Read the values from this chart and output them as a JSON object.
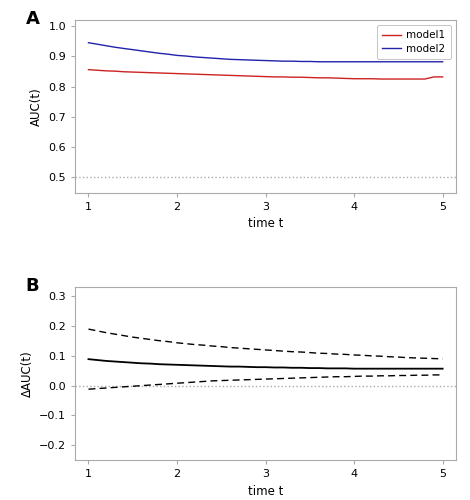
{
  "panel_A": {
    "model1_x": [
      1.0,
      1.1,
      1.2,
      1.3,
      1.4,
      1.5,
      1.6,
      1.7,
      1.8,
      1.9,
      2.0,
      2.1,
      2.2,
      2.3,
      2.4,
      2.5,
      2.6,
      2.7,
      2.8,
      2.9,
      3.0,
      3.1,
      3.2,
      3.3,
      3.4,
      3.5,
      3.6,
      3.7,
      3.8,
      3.9,
      4.0,
      4.1,
      4.2,
      4.3,
      4.4,
      4.5,
      4.6,
      4.7,
      4.8,
      4.9,
      5.0
    ],
    "model1_y": [
      0.856,
      0.854,
      0.852,
      0.851,
      0.849,
      0.848,
      0.847,
      0.846,
      0.845,
      0.844,
      0.843,
      0.842,
      0.841,
      0.84,
      0.839,
      0.838,
      0.837,
      0.836,
      0.835,
      0.834,
      0.833,
      0.832,
      0.832,
      0.831,
      0.831,
      0.83,
      0.829,
      0.829,
      0.828,
      0.827,
      0.826,
      0.826,
      0.826,
      0.825,
      0.825,
      0.825,
      0.825,
      0.825,
      0.825,
      0.832,
      0.832
    ],
    "model2_x": [
      1.0,
      1.1,
      1.2,
      1.3,
      1.4,
      1.5,
      1.6,
      1.7,
      1.8,
      1.9,
      2.0,
      2.1,
      2.2,
      2.3,
      2.4,
      2.5,
      2.6,
      2.7,
      2.8,
      2.9,
      3.0,
      3.1,
      3.2,
      3.3,
      3.4,
      3.5,
      3.6,
      3.7,
      3.8,
      3.9,
      4.0,
      4.1,
      4.2,
      4.3,
      4.4,
      4.5,
      4.6,
      4.7,
      4.8,
      4.9,
      5.0
    ],
    "model2_y": [
      0.945,
      0.94,
      0.935,
      0.93,
      0.926,
      0.922,
      0.918,
      0.914,
      0.91,
      0.907,
      0.903,
      0.901,
      0.898,
      0.896,
      0.894,
      0.892,
      0.89,
      0.889,
      0.888,
      0.887,
      0.886,
      0.885,
      0.884,
      0.884,
      0.883,
      0.883,
      0.882,
      0.882,
      0.882,
      0.882,
      0.882,
      0.882,
      0.882,
      0.882,
      0.882,
      0.882,
      0.882,
      0.882,
      0.882,
      0.882,
      0.882
    ],
    "hline_y": 0.5,
    "ylim": [
      0.45,
      1.02
    ],
    "yticks": [
      0.5,
      0.6,
      0.7,
      0.8,
      0.9,
      1.0
    ],
    "xlim": [
      0.85,
      5.15
    ],
    "xticks": [
      1,
      2,
      3,
      4,
      5
    ],
    "xlabel": "time t",
    "ylabel": "AUC(t)",
    "model1_color": "#cc2222",
    "model2_color": "#2222aa",
    "hline_color": "#aaaaaa",
    "legend_labels": [
      "model1",
      "model2"
    ]
  },
  "panel_B": {
    "mean_x": [
      1.0,
      1.1,
      1.2,
      1.3,
      1.4,
      1.5,
      1.6,
      1.7,
      1.8,
      1.9,
      2.0,
      2.1,
      2.2,
      2.3,
      2.4,
      2.5,
      2.6,
      2.7,
      2.8,
      2.9,
      3.0,
      3.1,
      3.2,
      3.3,
      3.4,
      3.5,
      3.6,
      3.7,
      3.8,
      3.9,
      4.0,
      4.1,
      4.2,
      4.3,
      4.4,
      4.5,
      4.6,
      4.7,
      4.8,
      4.9,
      5.0
    ],
    "mean_y": [
      0.089,
      0.086,
      0.083,
      0.081,
      0.079,
      0.077,
      0.075,
      0.074,
      0.072,
      0.071,
      0.07,
      0.069,
      0.068,
      0.067,
      0.066,
      0.065,
      0.064,
      0.064,
      0.063,
      0.062,
      0.062,
      0.061,
      0.061,
      0.06,
      0.06,
      0.059,
      0.059,
      0.058,
      0.058,
      0.058,
      0.057,
      0.057,
      0.057,
      0.057,
      0.057,
      0.057,
      0.057,
      0.057,
      0.057,
      0.057,
      0.057
    ],
    "upper_x": [
      1.0,
      1.1,
      1.2,
      1.3,
      1.4,
      1.5,
      1.6,
      1.7,
      1.8,
      1.9,
      2.0,
      2.1,
      2.2,
      2.3,
      2.4,
      2.5,
      2.6,
      2.7,
      2.8,
      2.9,
      3.0,
      3.1,
      3.2,
      3.3,
      3.4,
      3.5,
      3.6,
      3.7,
      3.8,
      3.9,
      4.0,
      4.1,
      4.2,
      4.3,
      4.4,
      4.5,
      4.6,
      4.7,
      4.8,
      4.9,
      5.0
    ],
    "upper_y": [
      0.19,
      0.184,
      0.178,
      0.173,
      0.168,
      0.163,
      0.159,
      0.155,
      0.151,
      0.148,
      0.144,
      0.141,
      0.138,
      0.136,
      0.133,
      0.131,
      0.128,
      0.126,
      0.124,
      0.122,
      0.12,
      0.118,
      0.116,
      0.114,
      0.113,
      0.111,
      0.109,
      0.108,
      0.106,
      0.105,
      0.103,
      0.102,
      0.1,
      0.099,
      0.097,
      0.096,
      0.094,
      0.093,
      0.092,
      0.091,
      0.09
    ],
    "lower_x": [
      1.0,
      1.1,
      1.2,
      1.3,
      1.4,
      1.5,
      1.6,
      1.7,
      1.8,
      1.9,
      2.0,
      2.1,
      2.2,
      2.3,
      2.4,
      2.5,
      2.6,
      2.7,
      2.8,
      2.9,
      3.0,
      3.1,
      3.2,
      3.3,
      3.4,
      3.5,
      3.6,
      3.7,
      3.8,
      3.9,
      4.0,
      4.1,
      4.2,
      4.3,
      4.4,
      4.5,
      4.6,
      4.7,
      4.8,
      4.9,
      5.0
    ],
    "lower_y": [
      -0.012,
      -0.01,
      -0.008,
      -0.006,
      -0.004,
      -0.002,
      0.0,
      0.002,
      0.004,
      0.006,
      0.008,
      0.01,
      0.012,
      0.014,
      0.016,
      0.017,
      0.018,
      0.019,
      0.02,
      0.021,
      0.022,
      0.023,
      0.024,
      0.025,
      0.026,
      0.027,
      0.028,
      0.029,
      0.03,
      0.03,
      0.031,
      0.032,
      0.032,
      0.033,
      0.033,
      0.034,
      0.034,
      0.035,
      0.035,
      0.036,
      0.036
    ],
    "hline_y": 0.0,
    "ylim": [
      -0.25,
      0.33
    ],
    "yticks": [
      -0.2,
      -0.1,
      0.0,
      0.1,
      0.2,
      0.3
    ],
    "xlim": [
      0.85,
      5.15
    ],
    "xticks": [
      1,
      2,
      3,
      4,
      5
    ],
    "xlabel": "time t",
    "ylabel": "ΔAUC(t)",
    "line_color": "#000000",
    "hline_color": "#aaaaaa"
  },
  "bg_color": "#ffffff",
  "panel_bg": "#ffffff",
  "spine_color": "#aaaaaa",
  "label_A": "A",
  "label_B": "B"
}
